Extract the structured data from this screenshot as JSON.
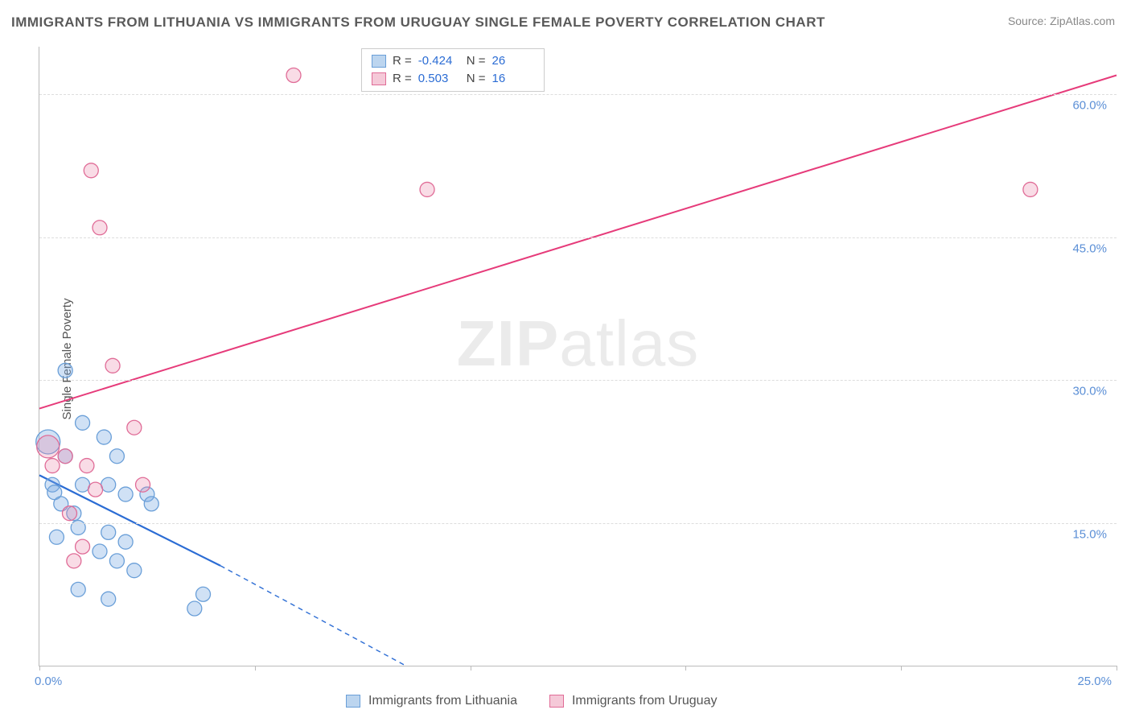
{
  "title": "IMMIGRANTS FROM LITHUANIA VS IMMIGRANTS FROM URUGUAY SINGLE FEMALE POVERTY CORRELATION CHART",
  "source_label": "Source:",
  "source_name": "ZipAtlas.com",
  "y_axis_label": "Single Female Poverty",
  "watermark_bold": "ZIP",
  "watermark_rest": "atlas",
  "chart": {
    "type": "scatter",
    "background_color": "#ffffff",
    "grid_color": "#dddddd",
    "axis_color": "#bbbbbb",
    "tick_label_color": "#5b8fd6",
    "xlim": [
      0,
      25
    ],
    "ylim": [
      0,
      65
    ],
    "x_ticks": [
      0,
      5,
      10,
      15,
      20,
      25
    ],
    "x_tick_labels_shown": {
      "0": "0.0%",
      "25": "25.0%"
    },
    "y_ticks": [
      15,
      30,
      45,
      60
    ],
    "y_tick_labels": {
      "15": "15.0%",
      "30": "30.0%",
      "45": "45.0%",
      "60": "60.0%"
    },
    "series": [
      {
        "name": "Immigrants from Lithuania",
        "color_fill": "rgba(120,170,225,0.35)",
        "color_stroke": "#6a9fd8",
        "swatch_fill": "#bcd5ef",
        "swatch_border": "#6a9fd8",
        "marker_radius": 9,
        "R": "-0.424",
        "N": "26",
        "trend": {
          "x1": 0,
          "y1": 20,
          "x2": 4.2,
          "y2": 10.5,
          "extend_to_x": 8.5,
          "extend_to_y": 0,
          "stroke": "#2b6cd4",
          "width": 2.2
        },
        "points": [
          {
            "x": 0.6,
            "y": 31
          },
          {
            "x": 1.0,
            "y": 25.5
          },
          {
            "x": 1.5,
            "y": 24
          },
          {
            "x": 0.2,
            "y": 23.5,
            "r": 15
          },
          {
            "x": 0.6,
            "y": 22
          },
          {
            "x": 1.8,
            "y": 22
          },
          {
            "x": 0.3,
            "y": 19
          },
          {
            "x": 0.35,
            "y": 18.2
          },
          {
            "x": 1.0,
            "y": 19
          },
          {
            "x": 1.6,
            "y": 19
          },
          {
            "x": 2.0,
            "y": 18
          },
          {
            "x": 2.5,
            "y": 18
          },
          {
            "x": 2.6,
            "y": 17
          },
          {
            "x": 0.5,
            "y": 17
          },
          {
            "x": 0.8,
            "y": 16
          },
          {
            "x": 0.9,
            "y": 14.5
          },
          {
            "x": 0.4,
            "y": 13.5
          },
          {
            "x": 1.6,
            "y": 14
          },
          {
            "x": 2.0,
            "y": 13
          },
          {
            "x": 1.4,
            "y": 12
          },
          {
            "x": 1.8,
            "y": 11
          },
          {
            "x": 2.2,
            "y": 10
          },
          {
            "x": 0.9,
            "y": 8
          },
          {
            "x": 1.6,
            "y": 7
          },
          {
            "x": 3.8,
            "y": 7.5
          },
          {
            "x": 3.6,
            "y": 6
          }
        ]
      },
      {
        "name": "Immigrants from Uruguay",
        "color_fill": "rgba(235,130,165,0.28)",
        "color_stroke": "#e06c97",
        "swatch_fill": "#f5c9d8",
        "swatch_border": "#e06c97",
        "marker_radius": 9,
        "R": "0.503",
        "N": "16",
        "trend": {
          "x1": 0,
          "y1": 27,
          "x2": 25,
          "y2": 62,
          "stroke": "#e63b7a",
          "width": 2
        },
        "points": [
          {
            "x": 5.9,
            "y": 62
          },
          {
            "x": 1.2,
            "y": 52
          },
          {
            "x": 9.0,
            "y": 50
          },
          {
            "x": 23.0,
            "y": 50
          },
          {
            "x": 1.4,
            "y": 46
          },
          {
            "x": 1.7,
            "y": 31.5
          },
          {
            "x": 2.2,
            "y": 25
          },
          {
            "x": 0.6,
            "y": 22
          },
          {
            "x": 0.3,
            "y": 21
          },
          {
            "x": 1.1,
            "y": 21
          },
          {
            "x": 0.2,
            "y": 23,
            "r": 14
          },
          {
            "x": 2.4,
            "y": 19
          },
          {
            "x": 1.3,
            "y": 18.5
          },
          {
            "x": 0.7,
            "y": 16
          },
          {
            "x": 1.0,
            "y": 12.5
          },
          {
            "x": 0.8,
            "y": 11
          }
        ]
      }
    ]
  },
  "legend_box": {
    "r_label": "R =",
    "n_label": "N ="
  }
}
